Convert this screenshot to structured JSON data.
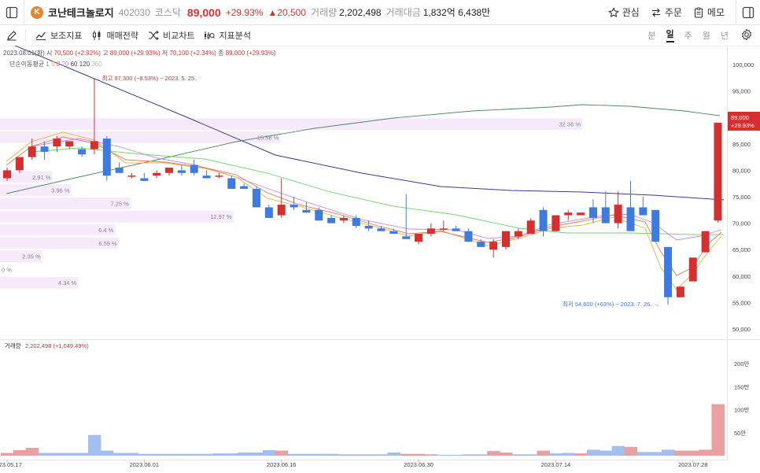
{
  "header": {
    "logo_letter": "K",
    "stock_name": "코난테크놀로지",
    "code": "402030",
    "market": "코스닥",
    "price": "89,000",
    "change_pct": "+29.93%",
    "change_amt": "▲20,500",
    "volume_label": "거래량",
    "volume": "2,202,498",
    "trade_value_label": "거래대금",
    "trade_value": "1,832억 6,438만"
  },
  "actions": {
    "watch": "관심",
    "order": "주문",
    "memo": "메모"
  },
  "toolbar": {
    "indicators": "보조지표",
    "strategy": "매매전략",
    "compare": "비교차트",
    "analysis": "지표분석"
  },
  "periods": [
    "분",
    "일",
    "주",
    "월",
    "년"
  ],
  "active_period": "일",
  "ohlc": {
    "date": "2023.08.01(화)",
    "open_label": "시",
    "open": "70,500 (+2.92%)",
    "high_label": "고",
    "high": "89,000 (+29.93%)",
    "low_label": "저",
    "low": "70,100 (+2.34%)",
    "close_label": "종",
    "close": "89,000 (+29.93%)"
  },
  "ma": {
    "label": "단순이동평균",
    "periods": [
      "1",
      "5",
      "8",
      "20",
      "60",
      "120",
      "360"
    ]
  },
  "colors": {
    "up": "#d62f2f",
    "down": "#3e7be0",
    "vol_up": "#e8a0a0",
    "vol_down": "#a3bff0",
    "accent": "#e03131"
  },
  "chart_data": {
    "type": "candlestick",
    "y_ticks": [
      "100,000",
      "95,000",
      "90,000",
      "85,000",
      "80,000",
      "75,000",
      "70,000",
      "65,000",
      "60,000",
      "55,000",
      "50,000"
    ],
    "y_range": [
      47000,
      101500
    ],
    "x_labels": [
      "2023.05.17",
      "2023.06.01",
      "2023.06.16",
      "2023.06.30",
      "2023.07.14",
      "2023.07.28"
    ],
    "current_price_label": "89,000",
    "current_change_label": "+29.93%",
    "high_note": "← 최고 97,300 (−8.53%) − 2023. 5. 25.",
    "low_note": "최저 54,600 (+63%) − 2023. 7. 26. →",
    "volume_profile": [
      {
        "pct": "32.36 %",
        "low": 87500,
        "high": 90000
      },
      {
        "pct": "15.58 %",
        "low": 85000,
        "high": 87500
      },
      {
        "pct": "2.91 %",
        "low": 77500,
        "high": 80000
      },
      {
        "pct": "3.96 %",
        "low": 75000,
        "high": 77500
      },
      {
        "pct": "7.25 %",
        "low": 72500,
        "high": 75000
      },
      {
        "pct": "12.97 %",
        "low": 70000,
        "high": 72500
      },
      {
        "pct": "6.4 %",
        "low": 67500,
        "high": 70000
      },
      {
        "pct": "6.59 %",
        "low": 65000,
        "high": 67500
      },
      {
        "pct": "2.35 %",
        "low": 62500,
        "high": 65000
      },
      {
        "pct": "0 %",
        "low": 60000,
        "high": 62500
      },
      {
        "pct": "4.34 %",
        "low": 57500,
        "high": 60000
      }
    ],
    "candles": [
      [
        78500,
        80500,
        78000,
        80000
      ],
      [
        80000,
        82500,
        79500,
        82500
      ],
      [
        82500,
        86000,
        82000,
        84500
      ],
      [
        84500,
        85500,
        82000,
        83500
      ],
      [
        84500,
        86500,
        83500,
        86000
      ],
      [
        84500,
        85500,
        84000,
        85500
      ],
      [
        84000,
        84500,
        82500,
        83000
      ],
      [
        84000,
        97300,
        83000,
        85500
      ],
      [
        86000,
        86500,
        78000,
        79000
      ],
      [
        80500,
        81500,
        79500,
        79500
      ],
      [
        79000,
        79500,
        78500,
        79000
      ],
      [
        78500,
        79500,
        78000,
        78000
      ],
      [
        79000,
        80000,
        78500,
        79500
      ],
      [
        79500,
        80500,
        79000,
        80500
      ],
      [
        80000,
        81000,
        79000,
        79500
      ],
      [
        81000,
        82000,
        79000,
        79500
      ],
      [
        79000,
        80000,
        78500,
        78500
      ],
      [
        79000,
        79500,
        78500,
        79000
      ],
      [
        78500,
        79000,
        76500,
        76500
      ],
      [
        77000,
        77500,
        76500,
        76500
      ],
      [
        76500,
        77000,
        73000,
        73000
      ],
      [
        73000,
        73500,
        71000,
        71000
      ],
      [
        71500,
        78500,
        71000,
        73500
      ],
      [
        73500,
        75000,
        72500,
        73000
      ],
      [
        72500,
        74000,
        72000,
        72000
      ],
      [
        72500,
        73000,
        70500,
        70500
      ],
      [
        71000,
        71500,
        70000,
        70000
      ],
      [
        70500,
        71500,
        70000,
        71000
      ],
      [
        71000,
        71500,
        69000,
        69500
      ],
      [
        69500,
        70500,
        68500,
        69000
      ],
      [
        69000,
        69500,
        68500,
        68500
      ],
      [
        68500,
        69000,
        68000,
        68000
      ],
      [
        67500,
        75500,
        67000,
        67000
      ],
      [
        66500,
        68000,
        66000,
        68000
      ],
      [
        68000,
        70000,
        67500,
        69000
      ],
      [
        69000,
        70500,
        68500,
        69000
      ],
      [
        69000,
        69500,
        68500,
        68500
      ],
      [
        68500,
        69000,
        66500,
        66500
      ],
      [
        66500,
        67000,
        65500,
        65500
      ],
      [
        65000,
        67000,
        63500,
        66500
      ],
      [
        65500,
        68500,
        65000,
        68500
      ],
      [
        67500,
        69000,
        67000,
        68500
      ],
      [
        68000,
        71000,
        68000,
        70500
      ],
      [
        72500,
        73000,
        67500,
        68500
      ],
      [
        68500,
        71500,
        68500,
        71500
      ],
      [
        71500,
        72500,
        70500,
        72000
      ],
      [
        71500,
        72000,
        71500,
        72000
      ],
      [
        73000,
        74500,
        70000,
        71000
      ],
      [
        73000,
        76000,
        70000,
        70000
      ],
      [
        70000,
        76000,
        69000,
        73500
      ],
      [
        73000,
        78000,
        68500,
        68500
      ],
      [
        73000,
        75000,
        71500,
        71500
      ],
      [
        72500,
        72500,
        66500,
        66500
      ],
      [
        65500,
        65500,
        54600,
        56000
      ],
      [
        56000,
        58000,
        56000,
        58000
      ],
      [
        59000,
        63500,
        59000,
        63500
      ],
      [
        64500,
        68500,
        64500,
        68500
      ],
      [
        70500,
        89000,
        70100,
        89000
      ]
    ],
    "volume": [
      [
        true,
        6
      ],
      [
        true,
        12
      ],
      [
        true,
        17
      ],
      [
        false,
        6
      ],
      [
        false,
        6
      ],
      [
        false,
        6
      ],
      [
        false,
        6
      ],
      [
        false,
        45
      ],
      [
        false,
        11
      ],
      [
        false,
        6
      ],
      [
        false,
        6
      ],
      [
        false,
        4
      ],
      [
        false,
        4
      ],
      [
        false,
        4
      ],
      [
        false,
        4
      ],
      [
        false,
        4
      ],
      [
        false,
        4
      ],
      [
        false,
        5
      ],
      [
        false,
        5
      ],
      [
        false,
        7
      ],
      [
        false,
        7
      ],
      [
        false,
        12
      ],
      [
        true,
        11
      ],
      [
        false,
        4
      ],
      [
        false,
        4
      ],
      [
        false,
        4
      ],
      [
        false,
        4
      ],
      [
        false,
        3
      ],
      [
        false,
        3
      ],
      [
        false,
        3
      ],
      [
        false,
        3
      ],
      [
        false,
        7
      ],
      [
        true,
        4
      ],
      [
        true,
        4
      ],
      [
        true,
        3
      ],
      [
        false,
        2
      ],
      [
        false,
        2
      ],
      [
        false,
        3
      ],
      [
        false,
        3
      ],
      [
        true,
        10
      ],
      [
        true,
        7
      ],
      [
        false,
        3
      ],
      [
        false,
        3
      ],
      [
        true,
        11
      ],
      [
        false,
        5
      ],
      [
        false,
        6
      ],
      [
        true,
        5
      ],
      [
        false,
        13
      ],
      [
        false,
        11
      ],
      [
        false,
        21
      ],
      [
        true,
        19
      ],
      [
        false,
        8
      ],
      [
        false,
        8
      ],
      [
        false,
        13
      ],
      [
        true,
        11
      ],
      [
        true,
        11
      ],
      [
        true,
        13
      ],
      [
        true,
        112
      ]
    ],
    "vol_y_ticks": [
      "200만",
      "150만",
      "100만",
      "50만"
    ],
    "volume_title": "거래량",
    "volume_value": "2,202,498 (+1,049.49%)"
  }
}
